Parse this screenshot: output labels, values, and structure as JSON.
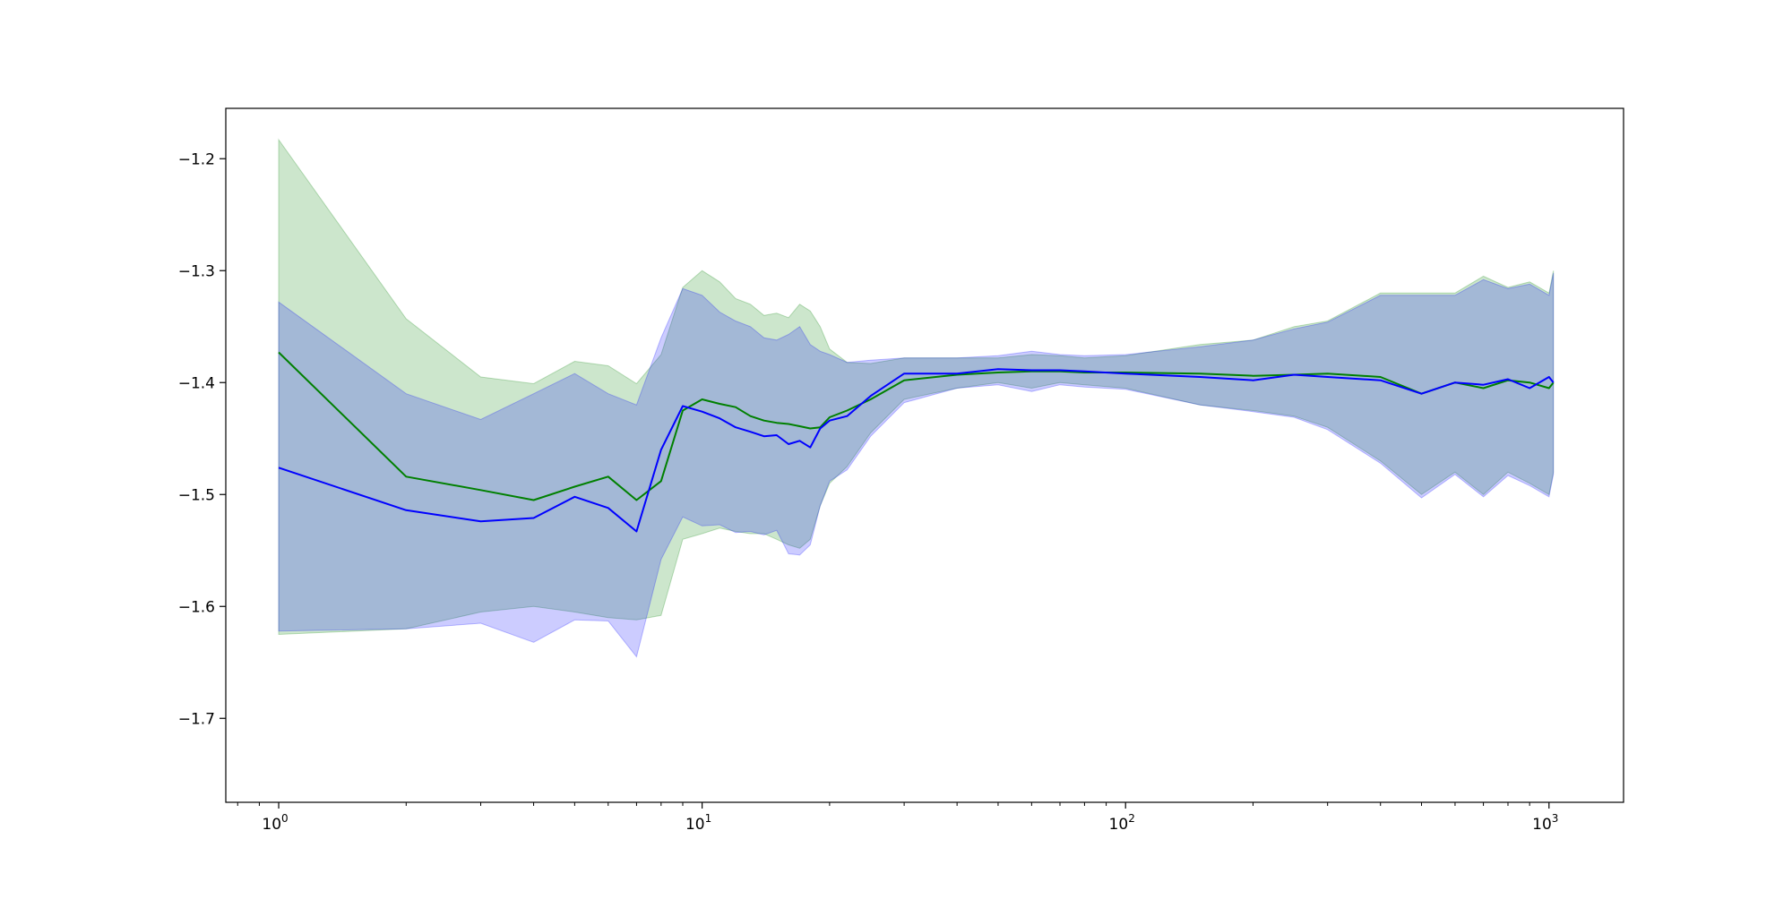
{
  "chart_data": {
    "type": "line",
    "x_scale": "log",
    "xlim": [
      0.75,
      1500
    ],
    "ylim": [
      -1.775,
      -1.155
    ],
    "grid": false,
    "legend": "none",
    "x_ticks": [
      {
        "value": 1,
        "base": "10",
        "exp": "0"
      },
      {
        "value": 10,
        "base": "10",
        "exp": "1"
      },
      {
        "value": 100,
        "base": "10",
        "exp": "2"
      },
      {
        "value": 1000,
        "base": "10",
        "exp": "3"
      }
    ],
    "y_ticks": [
      {
        "value": -1.2,
        "label": "−1.2"
      },
      {
        "value": -1.3,
        "label": "−1.3"
      },
      {
        "value": -1.4,
        "label": "−1.4"
      },
      {
        "value": -1.5,
        "label": "−1.5"
      },
      {
        "value": -1.6,
        "label": "−1.6"
      },
      {
        "value": -1.7,
        "label": "−1.7"
      }
    ],
    "series": [
      {
        "color": "#008000",
        "band_color": "#008000",
        "band_opacity": 0.2,
        "x": [
          1,
          2,
          3,
          4,
          5,
          6,
          7,
          8,
          9,
          10,
          11,
          12,
          13,
          14,
          15,
          16,
          17,
          18,
          19,
          20,
          22,
          25,
          30,
          40,
          50,
          60,
          70,
          80,
          100,
          150,
          200,
          250,
          300,
          400,
          500,
          600,
          700,
          800,
          900,
          1000,
          1024
        ],
        "y": [
          -1.373,
          -1.484,
          -1.496,
          -1.505,
          -1.493,
          -1.484,
          -1.505,
          -1.488,
          -1.425,
          -1.415,
          -1.419,
          -1.422,
          -1.43,
          -1.434,
          -1.436,
          -1.437,
          -1.439,
          -1.441,
          -1.44,
          -1.431,
          -1.425,
          -1.415,
          -1.398,
          -1.393,
          -1.391,
          -1.39,
          -1.39,
          -1.391,
          -1.391,
          -1.392,
          -1.394,
          -1.393,
          -1.392,
          -1.395,
          -1.41,
          -1.4,
          -1.405,
          -1.398,
          -1.4,
          -1.405,
          -1.4
        ],
        "lower": [
          -1.625,
          -1.62,
          -1.605,
          -1.6,
          -1.605,
          -1.61,
          -1.612,
          -1.608,
          -1.54,
          -1.535,
          -1.53,
          -1.533,
          -1.535,
          -1.535,
          -1.54,
          -1.545,
          -1.548,
          -1.54,
          -1.51,
          -1.49,
          -1.475,
          -1.445,
          -1.415,
          -1.405,
          -1.4,
          -1.405,
          -1.4,
          -1.402,
          -1.405,
          -1.42,
          -1.425,
          -1.43,
          -1.44,
          -1.47,
          -1.5,
          -1.48,
          -1.5,
          -1.48,
          -1.49,
          -1.5,
          -1.48
        ],
        "upper": [
          -1.183,
          -1.343,
          -1.395,
          -1.401,
          -1.381,
          -1.385,
          -1.401,
          -1.375,
          -1.315,
          -1.3,
          -1.31,
          -1.325,
          -1.33,
          -1.34,
          -1.338,
          -1.342,
          -1.33,
          -1.336,
          -1.35,
          -1.37,
          -1.382,
          -1.383,
          -1.378,
          -1.378,
          -1.378,
          -1.375,
          -1.376,
          -1.378,
          -1.376,
          -1.366,
          -1.362,
          -1.35,
          -1.345,
          -1.32,
          -1.32,
          -1.32,
          -1.305,
          -1.315,
          -1.31,
          -1.32,
          -1.3
        ]
      },
      {
        "color": "#0000ff",
        "band_color": "#0000ff",
        "band_opacity": 0.2,
        "x": [
          1,
          2,
          3,
          4,
          5,
          6,
          7,
          8,
          9,
          10,
          11,
          12,
          13,
          14,
          15,
          16,
          17,
          18,
          19,
          20,
          22,
          25,
          30,
          40,
          50,
          60,
          70,
          80,
          100,
          150,
          200,
          250,
          300,
          400,
          500,
          600,
          700,
          800,
          900,
          1000,
          1024
        ],
        "y": [
          -1.476,
          -1.514,
          -1.524,
          -1.521,
          -1.502,
          -1.512,
          -1.533,
          -1.46,
          -1.421,
          -1.426,
          -1.432,
          -1.44,
          -1.444,
          -1.448,
          -1.447,
          -1.455,
          -1.452,
          -1.458,
          -1.441,
          -1.434,
          -1.43,
          -1.412,
          -1.392,
          -1.392,
          -1.388,
          -1.389,
          -1.389,
          -1.39,
          -1.392,
          -1.395,
          -1.398,
          -1.393,
          -1.395,
          -1.398,
          -1.41,
          -1.4,
          -1.402,
          -1.397,
          -1.405,
          -1.395,
          -1.4
        ],
        "lower": [
          -1.622,
          -1.62,
          -1.615,
          -1.632,
          -1.612,
          -1.613,
          -1.645,
          -1.558,
          -1.52,
          -1.528,
          -1.527,
          -1.534,
          -1.533,
          -1.536,
          -1.532,
          -1.553,
          -1.554,
          -1.545,
          -1.51,
          -1.488,
          -1.478,
          -1.448,
          -1.418,
          -1.405,
          -1.402,
          -1.408,
          -1.402,
          -1.404,
          -1.406,
          -1.42,
          -1.426,
          -1.431,
          -1.442,
          -1.472,
          -1.503,
          -1.482,
          -1.502,
          -1.483,
          -1.492,
          -1.502,
          -1.482
        ],
        "upper": [
          -1.328,
          -1.41,
          -1.433,
          -1.41,
          -1.392,
          -1.41,
          -1.42,
          -1.36,
          -1.316,
          -1.322,
          -1.337,
          -1.345,
          -1.35,
          -1.36,
          -1.362,
          -1.357,
          -1.35,
          -1.366,
          -1.372,
          -1.375,
          -1.382,
          -1.38,
          -1.378,
          -1.378,
          -1.376,
          -1.372,
          -1.375,
          -1.376,
          -1.375,
          -1.368,
          -1.362,
          -1.352,
          -1.346,
          -1.322,
          -1.322,
          -1.322,
          -1.308,
          -1.316,
          -1.312,
          -1.322,
          -1.302
        ]
      }
    ]
  }
}
